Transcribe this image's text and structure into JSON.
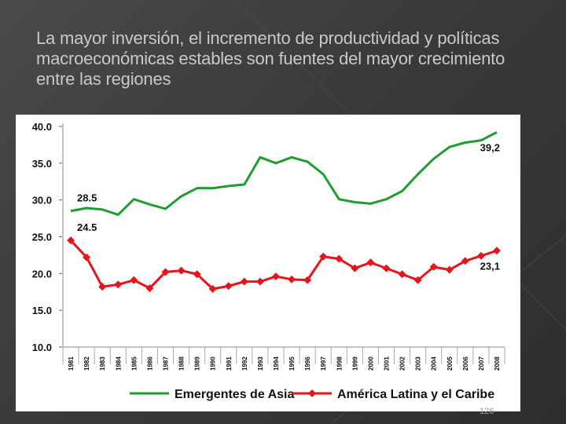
{
  "slide": {
    "title": "La mayor inversión, el incremento de productividad y políticas macroeconómicas estables son fuentes del mayor crecimiento entre las regiones",
    "page_number": "126"
  },
  "chart_data": {
    "type": "line",
    "title": "",
    "xlabel": "",
    "ylabel": "",
    "ylim": [
      10,
      40
    ],
    "yticks": [
      "40.0",
      "35.0",
      "30.0",
      "25.0",
      "20.0",
      "15.0",
      "10.0"
    ],
    "x": [
      "1981",
      "1982",
      "1983",
      "1984",
      "1985",
      "1986",
      "1987",
      "1988",
      "1989",
      "1990",
      "1991",
      "1992",
      "1993",
      "1994",
      "1995",
      "1996",
      "1997",
      "1998",
      "1999",
      "2000",
      "2001",
      "2002",
      "2003",
      "2004",
      "2005",
      "2006",
      "2007",
      "2008"
    ],
    "series": [
      {
        "name": "Emergentes de Asia",
        "color": "#1e9e2e",
        "marker": "none",
        "values": [
          28.5,
          28.9,
          28.7,
          28.0,
          30.1,
          29.4,
          28.8,
          30.5,
          31.6,
          31.6,
          31.9,
          32.1,
          35.8,
          35.0,
          35.8,
          35.2,
          33.5,
          30.1,
          29.7,
          29.5,
          30.1,
          31.2,
          33.5,
          35.6,
          37.2,
          37.8,
          38.1,
          39.2
        ],
        "labels": [
          {
            "index": 0,
            "text": "28.5"
          },
          {
            "index": 27,
            "text": "39,2"
          }
        ]
      },
      {
        "name": "América Latina y el Caribe",
        "color": "#e8141b",
        "marker": "diamond",
        "values": [
          24.5,
          22.2,
          18.2,
          18.5,
          19.1,
          18.0,
          20.2,
          20.4,
          19.9,
          17.9,
          18.3,
          18.9,
          18.9,
          19.6,
          19.2,
          19.1,
          22.3,
          22.0,
          20.7,
          21.5,
          20.7,
          19.9,
          19.1,
          20.9,
          20.5,
          21.7,
          22.4,
          23.1
        ],
        "labels": [
          {
            "index": 0,
            "text": "24.5"
          },
          {
            "index": 27,
            "text": "23,1"
          }
        ]
      }
    ],
    "legend": "bottom",
    "grid": false
  }
}
